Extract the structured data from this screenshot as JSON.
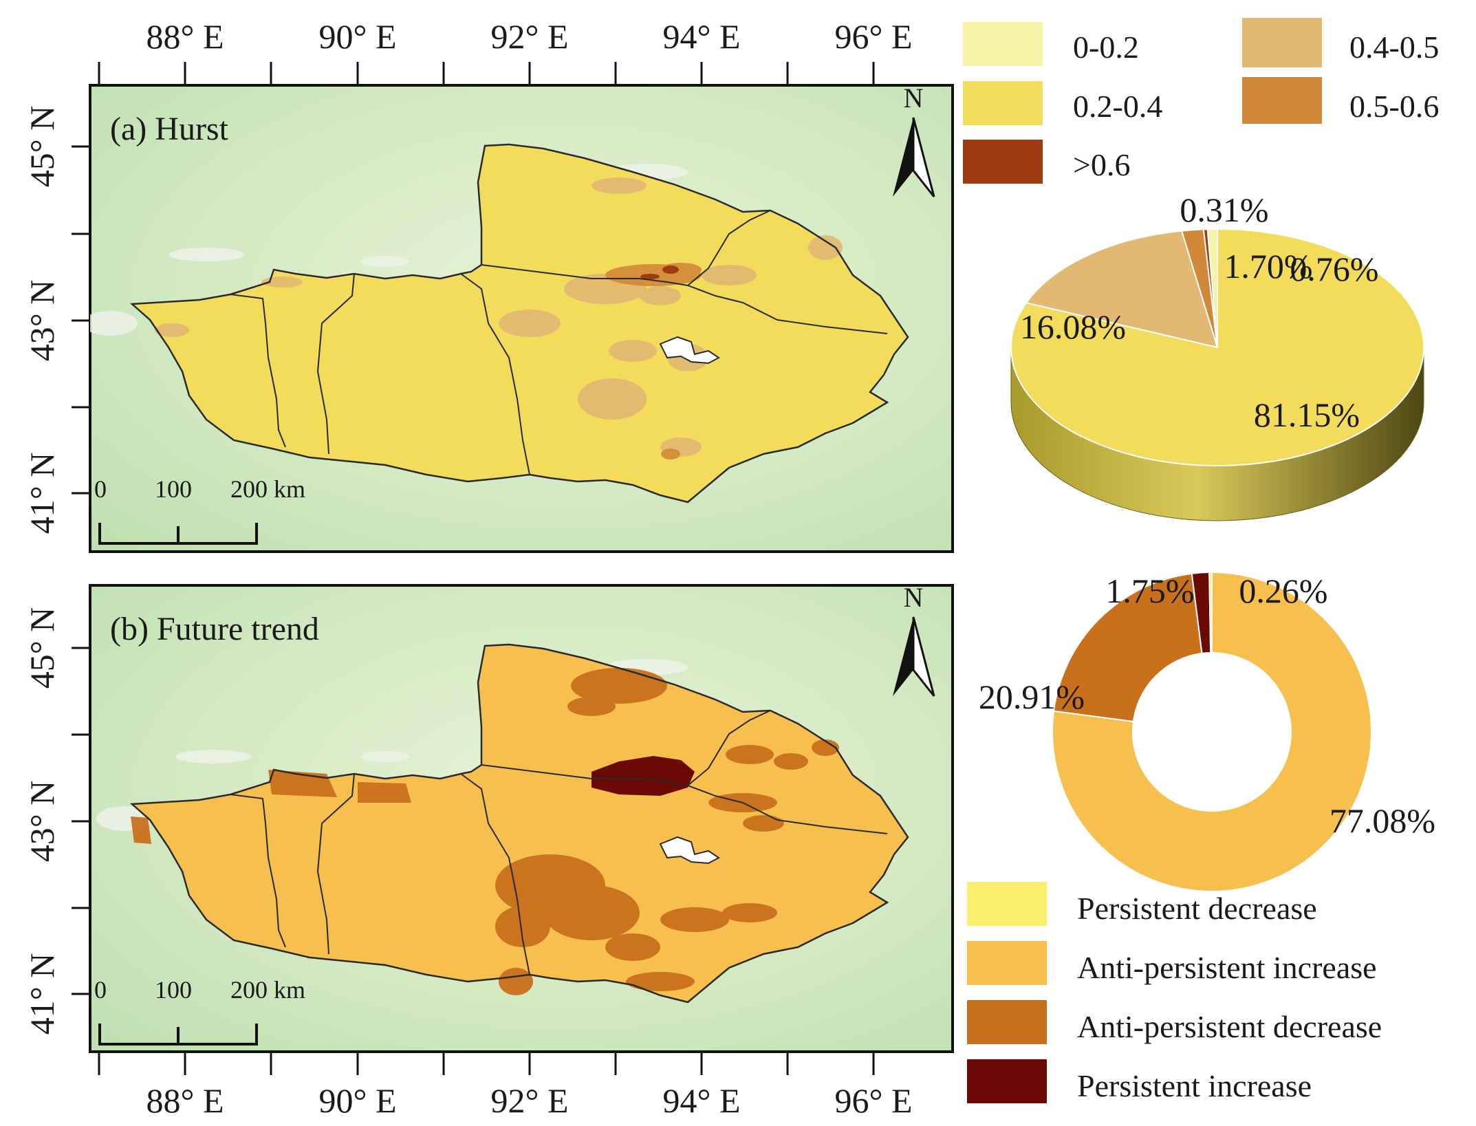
{
  "colors": {
    "c_0_02": "#f6f2a6",
    "c_02_04": "#f3dc5c",
    "c_04_05": "#e2b873",
    "c_05_06": "#d18937",
    "c_gt06": "#9c3c10",
    "persistent_decrease": "#fcef6e",
    "anti_persistent_increase": "#f7bf4e",
    "anti_persistent_decrease": "#c9701c",
    "persistent_increase": "#6b0a05",
    "background_terrain": "#d6ebc6",
    "boundary": "#2a2a2a"
  },
  "axes": {
    "longitude_labels": [
      "88° E",
      "90° E",
      "92° E",
      "94° E",
      "96° E"
    ],
    "latitude_labels": [
      "45° N",
      "43° N",
      "41° N"
    ]
  },
  "map_a": {
    "title": "(a) Hurst",
    "north_label": "N",
    "scale_labels": [
      "0",
      "100",
      "200 km"
    ]
  },
  "map_b": {
    "title": "(b) Future trend",
    "north_label": "N",
    "scale_labels": [
      "0",
      "100",
      "200 km"
    ]
  },
  "legend_hurst": {
    "items": [
      {
        "label": "0-0.2",
        "color_key": "c_0_02"
      },
      {
        "label": "0.2-0.4",
        "color_key": "c_02_04"
      },
      {
        "label": ">0.6",
        "color_key": "c_gt06"
      },
      {
        "label": "0.4-0.5",
        "color_key": "c_04_05"
      },
      {
        "label": "0.5-0.6",
        "color_key": "c_05_06"
      }
    ]
  },
  "legend_trend": {
    "items": [
      {
        "label": "Persistent decrease",
        "color_key": "persistent_decrease"
      },
      {
        "label": "Anti-persistent increase",
        "color_key": "anti_persistent_increase"
      },
      {
        "label": "Anti-persistent decrease",
        "color_key": "anti_persistent_decrease"
      },
      {
        "label": "Persistent increase",
        "color_key": "persistent_increase"
      }
    ]
  },
  "chart_data": [
    {
      "type": "pie",
      "slices": [
        {
          "label": "0.2-0.4",
          "value": 81.15,
          "text": "81.15%",
          "color_key": "c_02_04"
        },
        {
          "label": "0.4-0.5",
          "value": 16.08,
          "text": "16.08%",
          "color_key": "c_04_05"
        },
        {
          "label": "0.5-0.6",
          "value": 1.7,
          "text": "1.70%",
          "color_key": "c_05_06"
        },
        {
          "label": ">0.6",
          "value": 0.31,
          "text": "0.31%",
          "color_key": "c_gt06"
        },
        {
          "label": "0-0.2",
          "value": 0.76,
          "text": "0.76%",
          "color_key": "c_0_02"
        }
      ]
    },
    {
      "type": "pie",
      "slices": [
        {
          "label": "Anti-persistent increase",
          "value": 77.08,
          "text": "77.08%",
          "color_key": "anti_persistent_increase"
        },
        {
          "label": "Anti-persistent decrease",
          "value": 20.91,
          "text": "20.91%",
          "color_key": "anti_persistent_decrease"
        },
        {
          "label": "Persistent increase",
          "value": 1.75,
          "text": "1.75%",
          "color_key": "persistent_increase"
        },
        {
          "label": "Persistent decrease",
          "value": 0.26,
          "text": "0.26%",
          "color_key": "persistent_decrease"
        }
      ]
    }
  ]
}
